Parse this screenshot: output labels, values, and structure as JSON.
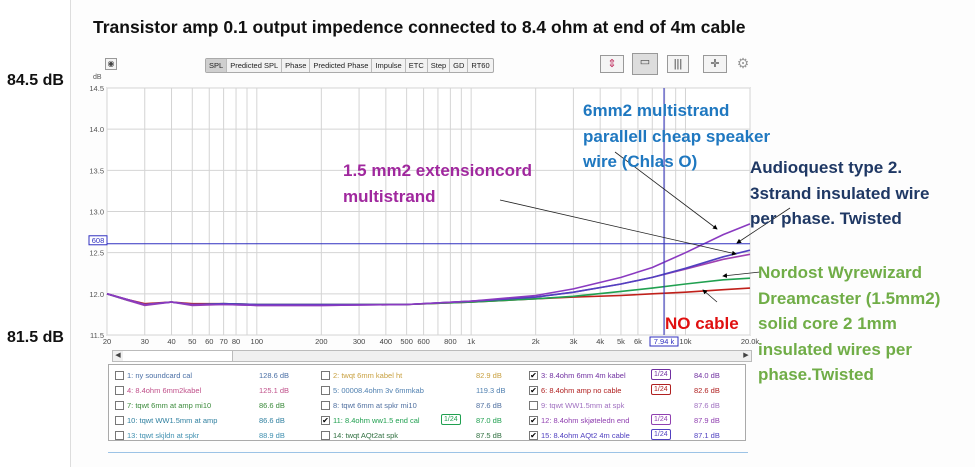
{
  "title": "Transistor amp 0.1 output impedence  connected to 8.4 ohm at end of 4m cable",
  "top_db_label": "84.5 dB",
  "bottom_db_label": "81.5 dB",
  "toolbar": {
    "tabs": [
      "SPL",
      "Predicted SPL",
      "Phase",
      "Predicted Phase",
      "Impulse",
      "ETC",
      "Step",
      "GD",
      "RT60"
    ],
    "active": "SPL"
  },
  "icons": [
    "graph-controls-icon",
    "legend-layout-icon",
    "columns-icon",
    "axis-limits-icon",
    "settings-gear-icon"
  ],
  "cursor": {
    "freq_label": "7.94 k",
    "level_label": "608",
    "freq": 7940,
    "level": 12.608
  },
  "annotations": {
    "six_mm": [
      "6mm2 multistrand",
      "parallell cheap speaker",
      "wire (Chlas O)"
    ],
    "ext_cord": [
      "1.5 mm2 extensioncord",
      "multistrand"
    ],
    "audioquest": [
      "Audioquest type 2.",
      "3strand insulated wire",
      "per phase. Twisted"
    ],
    "nordost": [
      "Nordost Wyrewizard",
      "Dreamcaster (1.5mm2)",
      "solid core 2 1mm",
      "insulated wires per",
      "phase.Twisted"
    ],
    "no_cable": "NO cable"
  },
  "legend": [
    {
      "label": "1: ny soundcard cal",
      "value": "128.6 dB",
      "checked": false,
      "color": "#4a6fa5"
    },
    {
      "label": "2: twqt 6mm kabel ht",
      "value": "82.9 dB",
      "checked": false,
      "color": "#c8a040"
    },
    {
      "label": "3: 8.4ohm 6mm 4m kabel",
      "value": "84.0 dB",
      "checked": true,
      "color": "#7030a0",
      "badge": "1/24"
    },
    {
      "label": "4: 8.4ohm 6mm2kabel",
      "value": "125.1 dB",
      "checked": false,
      "color": "#c0508a"
    },
    {
      "label": "5: 00008.4ohm 3v 6mmkab",
      "value": "119.3 dB",
      "checked": false,
      "color": "#5080b0"
    },
    {
      "label": "6: 8.4ohm amp no cable",
      "value": "82.6 dB",
      "checked": true,
      "color": "#b02020",
      "badge": "1/24"
    },
    {
      "label": "7: tqwt 6mm at amp mi10",
      "value": "86.6 dB",
      "checked": false,
      "color": "#3a8a3a"
    },
    {
      "label": "8: tqwt 6mm at spkr mi10",
      "value": "87.6 dB",
      "checked": false,
      "color": "#5070a0"
    },
    {
      "label": "9: tqwt WW1.5mm at spk",
      "value": "87.6 dB",
      "checked": false,
      "color": "#a070c0"
    },
    {
      "label": "10: tqwt WW1.5mm at amp",
      "value": "86.6 dB",
      "checked": false,
      "color": "#3080a0"
    },
    {
      "label": "11: 8.4ohm ww1.5 end cal",
      "value": "87.0 dB",
      "checked": true,
      "color": "#20a050",
      "badge": "1/24"
    },
    {
      "label": "12: 8.4ohm skjøteledn end",
      "value": "87.9 dB",
      "checked": true,
      "color": "#9040b0",
      "badge": "1/24"
    },
    {
      "label": "13: tqwt skjldn at spkr",
      "value": "88.9 dB",
      "checked": false,
      "color": "#4090b0"
    },
    {
      "label": "14: twqt AQt2at spk",
      "value": "87.5 dB",
      "checked": false,
      "color": "#307040"
    },
    {
      "label": "15: 8.4ohm  AQt2 4m cable",
      "value": "87.1 dB",
      "checked": true,
      "color": "#5040c0",
      "badge": "1/24"
    }
  ],
  "chart_data": {
    "type": "line",
    "title": "Transistor amp 0.1 output impedence  connected to 8.4 ohm at end of 4m cable",
    "xlabel": "Hz",
    "ylabel": "dB",
    "xscale": "log",
    "xlim": [
      20,
      20000
    ],
    "ylim": [
      11.5,
      14.5
    ],
    "grid": true,
    "y_ticks": [
      "14.5",
      "14.0",
      "13.5",
      "13.0",
      "12.5",
      "12.0",
      "11.5"
    ],
    "y_tick_values": [
      14.5,
      14.0,
      13.5,
      13.0,
      12.5,
      12.0,
      11.5
    ],
    "x_ticks": [
      {
        "f": 20,
        "l": "20"
      },
      {
        "f": 30,
        "l": "30"
      },
      {
        "f": 40,
        "l": "40"
      },
      {
        "f": 50,
        "l": "50"
      },
      {
        "f": 60,
        "l": "60"
      },
      {
        "f": 70,
        "l": "70"
      },
      {
        "f": 80,
        "l": "80"
      },
      {
        "f": 100,
        "l": "100"
      },
      {
        "f": 200,
        "l": "200"
      },
      {
        "f": 300,
        "l": "300"
      },
      {
        "f": 400,
        "l": "400"
      },
      {
        "f": 500,
        "l": "500"
      },
      {
        "f": 600,
        "l": "600"
      },
      {
        "f": 800,
        "l": "800"
      },
      {
        "f": 1000,
        "l": "1k"
      },
      {
        "f": 2000,
        "l": "2k"
      },
      {
        "f": 3000,
        "l": "3k"
      },
      {
        "f": 4000,
        "l": "4k"
      },
      {
        "f": 5000,
        "l": "5k"
      },
      {
        "f": 6000,
        "l": "6k"
      },
      {
        "f": 10000,
        "l": "10k"
      },
      {
        "f": 20000,
        "l": "20.0k"
      }
    ],
    "x": [
      20,
      25,
      30,
      40,
      50,
      70,
      100,
      200,
      500,
      1000,
      2000,
      3000,
      5000,
      7000,
      10000,
      15000,
      20000
    ],
    "series": [
      {
        "name": "6: 8.4ohm amp no cable",
        "color": "#c0201a",
        "values": [
          12.0,
          11.93,
          11.88,
          11.9,
          11.88,
          11.88,
          11.87,
          11.87,
          11.87,
          11.9,
          11.94,
          11.96,
          11.98,
          12.0,
          12.02,
          12.05,
          12.07
        ]
      },
      {
        "name": "11: 8.4ohm ww1.5 end cal",
        "color": "#20a050",
        "values": [
          12.0,
          11.92,
          11.87,
          11.9,
          11.87,
          11.88,
          11.87,
          11.87,
          11.87,
          11.9,
          11.94,
          11.97,
          12.03,
          12.07,
          12.12,
          12.17,
          12.19
        ]
      },
      {
        "name": "12: 8.4ohm skjøteledn end",
        "color": "#a040b0",
        "values": [
          12.0,
          11.92,
          11.86,
          11.9,
          11.86,
          11.87,
          11.86,
          11.86,
          11.87,
          11.91,
          11.96,
          12.02,
          12.12,
          12.2,
          12.3,
          12.42,
          12.48
        ]
      },
      {
        "name": "15: 8.4ohm  AQt2 4m cable",
        "color": "#5040c0",
        "values": [
          12.0,
          11.93,
          11.87,
          11.9,
          11.87,
          11.88,
          11.87,
          11.87,
          11.87,
          11.91,
          11.96,
          12.02,
          12.12,
          12.2,
          12.31,
          12.45,
          12.53
        ]
      },
      {
        "name": "3: 8.4ohm 6mm 4m kabel",
        "color": "#8a3ac0",
        "values": [
          12.0,
          11.93,
          11.87,
          11.9,
          11.87,
          11.87,
          11.86,
          11.86,
          11.87,
          11.91,
          11.98,
          12.06,
          12.2,
          12.32,
          12.5,
          12.72,
          12.85
        ]
      }
    ]
  }
}
